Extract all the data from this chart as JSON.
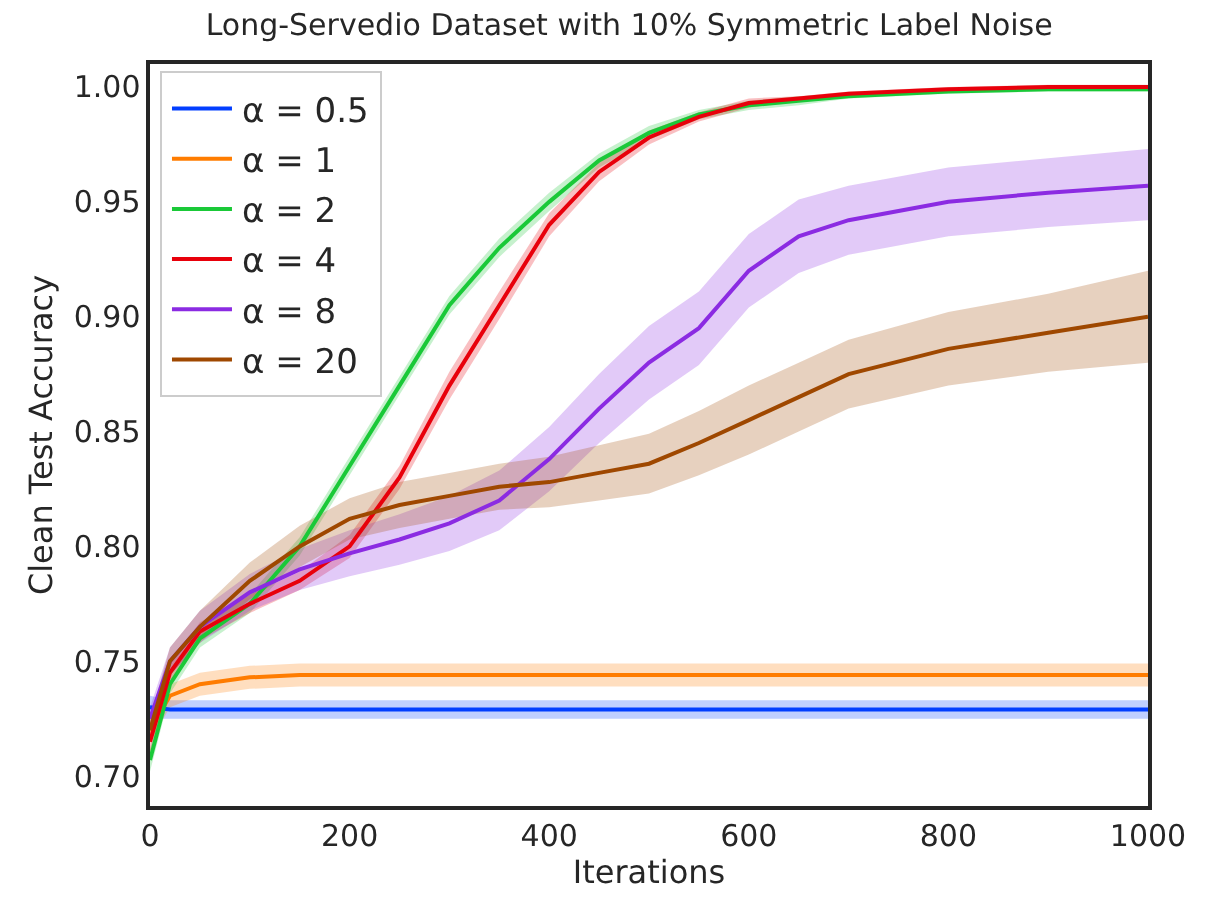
{
  "chart_data": {
    "type": "line",
    "title": "Long-Servedio Dataset with 10% Symmetric Label Noise",
    "xlabel": "Iterations",
    "ylabel": "Clean Test Accuracy",
    "x": [
      0,
      20,
      50,
      100,
      150,
      200,
      250,
      300,
      350,
      400,
      450,
      500,
      550,
      600,
      650,
      700,
      800,
      900,
      1000
    ],
    "xlim": [
      0,
      1000
    ],
    "xticks": [
      0,
      200,
      400,
      600,
      800,
      1000
    ],
    "ylim": [
      0.687,
      1.01
    ],
    "yticks": [
      {
        "value": 0.7,
        "label": "0.70"
      },
      {
        "value": 0.75,
        "label": "0.75"
      },
      {
        "value": 0.8,
        "label": "0.80"
      },
      {
        "value": 0.85,
        "label": "0.85"
      },
      {
        "value": 0.9,
        "label": "0.90"
      },
      {
        "value": 0.95,
        "label": "0.95"
      },
      {
        "value": 1.0,
        "label": "1.00"
      }
    ],
    "grid": false,
    "legend": "top left",
    "marker": "none",
    "line_style": "solid",
    "series": [
      {
        "name": "α = 0.5",
        "color": "#023eff",
        "values": [
          0.73,
          0.729,
          0.729,
          0.729,
          0.729,
          0.729,
          0.729,
          0.729,
          0.729,
          0.729,
          0.729,
          0.729,
          0.729,
          0.729,
          0.729,
          0.729,
          0.729,
          0.729,
          0.729
        ],
        "lower": [
          0.725,
          0.725,
          0.725,
          0.725,
          0.725,
          0.725,
          0.725,
          0.725,
          0.725,
          0.725,
          0.725,
          0.725,
          0.725,
          0.725,
          0.725,
          0.725,
          0.725,
          0.725,
          0.725
        ],
        "upper": [
          0.735,
          0.733,
          0.733,
          0.733,
          0.733,
          0.733,
          0.733,
          0.733,
          0.733,
          0.733,
          0.733,
          0.733,
          0.733,
          0.733,
          0.733,
          0.733,
          0.733,
          0.733,
          0.733
        ]
      },
      {
        "name": "α = 1",
        "color": "#ff7c00",
        "values": [
          0.72,
          0.735,
          0.74,
          0.743,
          0.744,
          0.744,
          0.744,
          0.744,
          0.744,
          0.744,
          0.744,
          0.744,
          0.744,
          0.744,
          0.744,
          0.744,
          0.744,
          0.744,
          0.744
        ],
        "lower": [
          0.715,
          0.73,
          0.735,
          0.738,
          0.739,
          0.739,
          0.739,
          0.739,
          0.739,
          0.739,
          0.739,
          0.739,
          0.739,
          0.739,
          0.739,
          0.739,
          0.739,
          0.739,
          0.739
        ],
        "upper": [
          0.725,
          0.74,
          0.745,
          0.748,
          0.749,
          0.749,
          0.749,
          0.749,
          0.749,
          0.749,
          0.749,
          0.749,
          0.749,
          0.749,
          0.749,
          0.749,
          0.749,
          0.749,
          0.749
        ]
      },
      {
        "name": "α = 2",
        "color": "#1ac938",
        "values": [
          0.707,
          0.74,
          0.76,
          0.775,
          0.8,
          0.835,
          0.87,
          0.905,
          0.93,
          0.95,
          0.968,
          0.98,
          0.988,
          0.992,
          0.994,
          0.996,
          0.998,
          0.999,
          0.999
        ],
        "lower": [
          0.702,
          0.736,
          0.756,
          0.771,
          0.796,
          0.831,
          0.866,
          0.901,
          0.926,
          0.946,
          0.965,
          0.977,
          0.986,
          0.99,
          0.992,
          0.995,
          0.997,
          0.998,
          0.998
        ],
        "upper": [
          0.712,
          0.744,
          0.764,
          0.779,
          0.804,
          0.839,
          0.874,
          0.909,
          0.934,
          0.954,
          0.971,
          0.983,
          0.99,
          0.994,
          0.996,
          0.997,
          0.999,
          1.0,
          1.0
        ]
      },
      {
        "name": "α = 4",
        "color": "#e8000b",
        "values": [
          0.715,
          0.745,
          0.763,
          0.775,
          0.785,
          0.8,
          0.83,
          0.87,
          0.905,
          0.94,
          0.963,
          0.978,
          0.987,
          0.993,
          0.995,
          0.997,
          0.999,
          1.0,
          1.0
        ],
        "lower": [
          0.71,
          0.741,
          0.759,
          0.771,
          0.781,
          0.795,
          0.825,
          0.864,
          0.899,
          0.935,
          0.959,
          0.975,
          0.985,
          0.991,
          0.994,
          0.996,
          0.998,
          0.999,
          0.999
        ],
        "upper": [
          0.72,
          0.749,
          0.767,
          0.779,
          0.789,
          0.805,
          0.835,
          0.876,
          0.911,
          0.945,
          0.967,
          0.981,
          0.989,
          0.995,
          0.996,
          0.998,
          1.0,
          1.001,
          1.001
        ]
      },
      {
        "name": "α = 8",
        "color": "#8b2be2",
        "values": [
          0.725,
          0.75,
          0.765,
          0.78,
          0.79,
          0.797,
          0.803,
          0.81,
          0.82,
          0.838,
          0.86,
          0.88,
          0.895,
          0.92,
          0.935,
          0.942,
          0.95,
          0.954,
          0.957
        ],
        "lower": [
          0.72,
          0.744,
          0.758,
          0.772,
          0.781,
          0.787,
          0.792,
          0.798,
          0.807,
          0.824,
          0.845,
          0.864,
          0.879,
          0.904,
          0.919,
          0.927,
          0.935,
          0.939,
          0.942
        ],
        "upper": [
          0.73,
          0.756,
          0.772,
          0.788,
          0.799,
          0.807,
          0.814,
          0.822,
          0.833,
          0.852,
          0.875,
          0.896,
          0.911,
          0.936,
          0.951,
          0.957,
          0.965,
          0.969,
          0.973
        ]
      },
      {
        "name": "α = 20",
        "color": "#9f4800",
        "values": [
          0.72,
          0.75,
          0.765,
          0.785,
          0.8,
          0.812,
          0.818,
          0.822,
          0.826,
          0.828,
          0.832,
          0.836,
          0.845,
          0.855,
          0.865,
          0.875,
          0.886,
          0.893,
          0.9
        ],
        "lower": [
          0.715,
          0.744,
          0.758,
          0.777,
          0.791,
          0.803,
          0.808,
          0.812,
          0.816,
          0.817,
          0.82,
          0.823,
          0.831,
          0.84,
          0.85,
          0.86,
          0.87,
          0.876,
          0.88
        ],
        "upper": [
          0.725,
          0.756,
          0.772,
          0.793,
          0.809,
          0.821,
          0.828,
          0.832,
          0.836,
          0.839,
          0.844,
          0.849,
          0.859,
          0.87,
          0.88,
          0.89,
          0.902,
          0.91,
          0.92
        ]
      }
    ]
  }
}
